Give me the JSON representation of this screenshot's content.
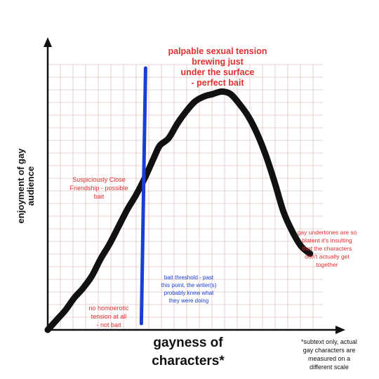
{
  "chart_data": {
    "type": "line",
    "title": "",
    "xlabel": [
      "gayness of",
      "characters*"
    ],
    "ylabel": [
      "enjoyment of gay",
      "audience"
    ],
    "grid": true,
    "series": [
      {
        "color": "#111111",
        "x": [
          0,
          3,
          6,
          9,
          12,
          15,
          18,
          21,
          24,
          27,
          30,
          33,
          36,
          38,
          41,
          44,
          47,
          50,
          53,
          56,
          59,
          62,
          65,
          68,
          71,
          74,
          77,
          80,
          83,
          86,
          89
        ],
        "y": [
          0,
          4,
          8,
          13,
          17,
          22,
          29,
          35,
          42,
          49,
          55,
          62,
          70,
          75,
          78,
          84,
          89,
          93,
          95,
          96,
          97,
          96,
          92,
          87,
          80,
          71,
          60,
          48,
          40,
          34,
          31
        ]
      }
    ],
    "threshold": {
      "x": 32,
      "color": "#1a3fd4",
      "label": [
        "bait threshold - past",
        "this point, the writer(s)",
        "probably knew what",
        "they were doing"
      ]
    },
    "annotations": [
      {
        "id": "peak",
        "lines": [
          "palpable sexual tension",
          "brewing just",
          "under the surface",
          "- perfect bait"
        ]
      },
      {
        "id": "friendship",
        "lines": [
          "Suspiciously Close",
          "Friendship - possible",
          "bait"
        ]
      },
      {
        "id": "none",
        "lines": [
          "no homoerotic",
          "tension at all",
          "- not bait"
        ]
      },
      {
        "id": "undertones",
        "lines": [
          "gay undertones are so",
          "blatent it's insulting",
          "that the characters",
          "don't actually get",
          "together"
        ]
      }
    ],
    "footnote": [
      "*subtext only, actual",
      "gay characters are",
      "measured on a",
      "different scale"
    ],
    "colors": {
      "annotation": "#e03030",
      "axis": "#111111",
      "grid": "#e2c4c4",
      "curve": "#111111",
      "threshold": "#1a3fd4"
    }
  }
}
